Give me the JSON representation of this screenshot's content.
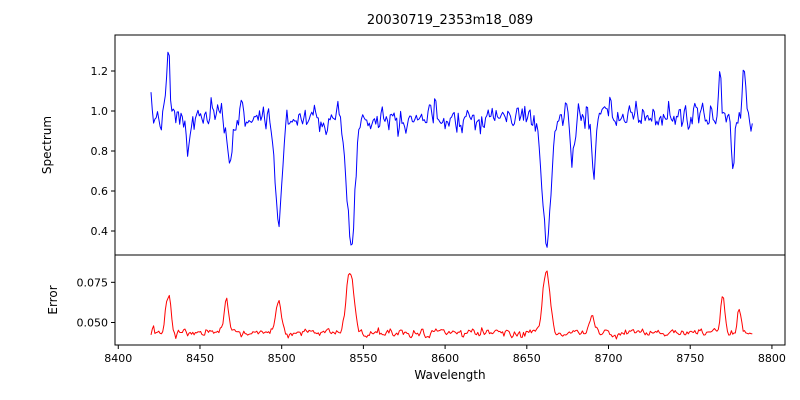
{
  "chart_data": [
    {
      "type": "line",
      "name": "spectrum",
      "title": "20030719_2353m18_089",
      "ylabel": "Spectrum",
      "line_color": "#0000ff",
      "axis_color": "#000000",
      "grid": false,
      "xlim": [
        8398,
        8808
      ],
      "ylim": [
        0.28,
        1.38
      ],
      "yticks": [
        0.4,
        0.6,
        0.8,
        1.0,
        1.2
      ],
      "ytick_labels": [
        "0.4",
        "0.6",
        "0.8",
        "1.0",
        "1.2"
      ],
      "x_start": 8420,
      "x_end": 8788,
      "x_step": 0.8,
      "continuum": 0.97,
      "noise_sigma": 0.045,
      "noise_seed": 7,
      "features": [
        {
          "center": 8430.5,
          "amplitude": 0.33,
          "width": 0.9
        },
        {
          "center": 8443.0,
          "amplitude": -0.17,
          "width": 1.4
        },
        {
          "center": 8468.0,
          "amplitude": -0.24,
          "width": 1.4
        },
        {
          "center": 8498.1,
          "amplitude": -0.52,
          "width": 2.1
        },
        {
          "center": 8542.1,
          "amplitude": -0.63,
          "width": 2.5
        },
        {
          "center": 8662.2,
          "amplitude": -0.66,
          "width": 2.5
        },
        {
          "center": 8678.0,
          "amplitude": -0.18,
          "width": 1.2
        },
        {
          "center": 8691.0,
          "amplitude": -0.27,
          "width": 1.3
        },
        {
          "center": 8768.0,
          "amplitude": 0.24,
          "width": 0.9
        },
        {
          "center": 8776.0,
          "amplitude": -0.25,
          "width": 1.0
        },
        {
          "center": 8783.0,
          "amplitude": 0.28,
          "width": 0.9
        }
      ]
    },
    {
      "type": "line",
      "name": "error",
      "ylabel": "Error",
      "xlabel": "Wavelength",
      "line_color": "#ff0000",
      "axis_color": "#000000",
      "grid": false,
      "xlim": [
        8398,
        8808
      ],
      "ylim": [
        0.036,
        0.092
      ],
      "yticks": [
        0.05,
        0.075
      ],
      "ytick_labels": [
        "0.050",
        "0.075"
      ],
      "xticks": [
        8400,
        8450,
        8500,
        8550,
        8600,
        8650,
        8700,
        8750,
        8800
      ],
      "xtick_labels": [
        "8400",
        "8450",
        "8500",
        "8550",
        "8600",
        "8650",
        "8700",
        "8750",
        "8800"
      ],
      "x_start": 8420,
      "x_end": 8788,
      "x_step": 0.8,
      "continuum": 0.0435,
      "noise_sigma": 0.0018,
      "noise_seed": 13,
      "features": [
        {
          "center": 8430.5,
          "amplitude": 0.023,
          "width": 1.6
        },
        {
          "center": 8466.0,
          "amplitude": 0.02,
          "width": 1.3
        },
        {
          "center": 8498.0,
          "amplitude": 0.021,
          "width": 1.6
        },
        {
          "center": 8542.0,
          "amplitude": 0.039,
          "width": 2.2
        },
        {
          "center": 8662.0,
          "amplitude": 0.039,
          "width": 2.2
        },
        {
          "center": 8690.0,
          "amplitude": 0.011,
          "width": 1.5
        },
        {
          "center": 8770.0,
          "amplitude": 0.025,
          "width": 1.2
        },
        {
          "center": 8780.0,
          "amplitude": 0.013,
          "width": 1.0
        }
      ]
    }
  ]
}
